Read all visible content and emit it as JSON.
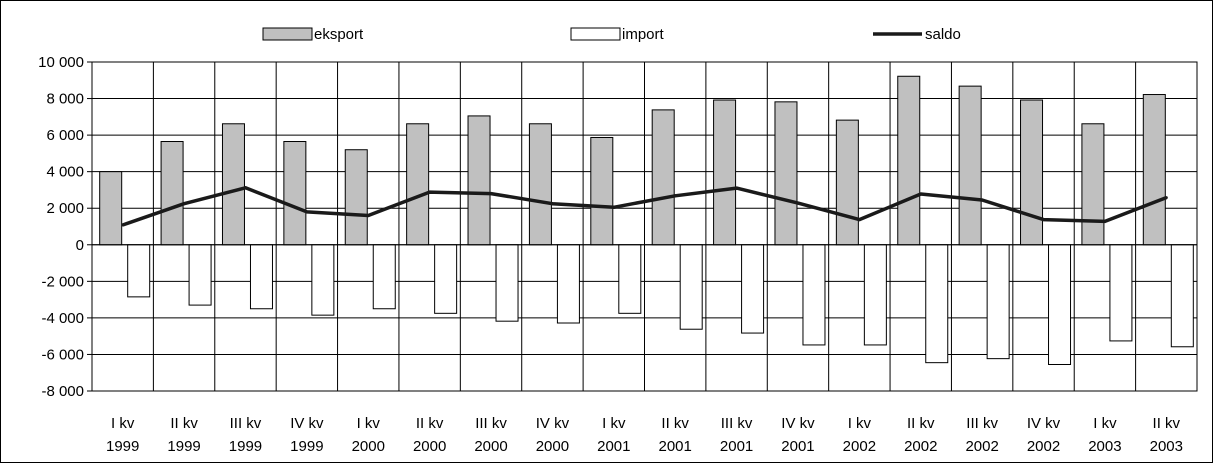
{
  "chart_data": {
    "type": "bar",
    "categories": [
      [
        "I kv",
        "1999"
      ],
      [
        "II kv",
        "1999"
      ],
      [
        "III kv",
        "1999"
      ],
      [
        "IV kv",
        "1999"
      ],
      [
        "I kv",
        "2000"
      ],
      [
        "II kv",
        "2000"
      ],
      [
        "III kv",
        "2000"
      ],
      [
        "IV kv",
        "2000"
      ],
      [
        "I kv",
        "2001"
      ],
      [
        "II kv",
        "2001"
      ],
      [
        "III kv",
        "2001"
      ],
      [
        "IV kv",
        "2001"
      ],
      [
        "I kv",
        "2002"
      ],
      [
        "II kv",
        "2002"
      ],
      [
        "III kv",
        "2002"
      ],
      [
        "IV kv",
        "2002"
      ],
      [
        "I kv",
        "2003"
      ],
      [
        "II kv",
        "2003"
      ]
    ],
    "series": [
      {
        "name": "eksport",
        "kind": "bar",
        "color": "#c0c0c0",
        "values": [
          4000,
          5650,
          6620,
          5650,
          5200,
          6620,
          7050,
          6620,
          5870,
          7380,
          7920,
          7820,
          6820,
          9220,
          8680,
          7920,
          6620,
          8220
        ]
      },
      {
        "name": "import",
        "kind": "bar",
        "color": "#ffffff",
        "values": [
          -2850,
          -3300,
          -3500,
          -3850,
          -3500,
          -3750,
          -4180,
          -4280,
          -3750,
          -4620,
          -4830,
          -5480,
          -5480,
          -6450,
          -6230,
          -6550,
          -5260,
          -5580
        ]
      },
      {
        "name": "saldo",
        "kind": "line",
        "color": "#1a1a1a",
        "values": [
          1080,
          2250,
          3120,
          1800,
          1600,
          2880,
          2800,
          2250,
          2050,
          2680,
          3100,
          2280,
          1380,
          2780,
          2450,
          1380,
          1280,
          2580
        ]
      }
    ],
    "ylim": [
      -8000,
      10000
    ],
    "ytick_step": 2000,
    "ytick_labels": [
      "10 000",
      "8 000",
      "6 000",
      "4 000",
      "2 000",
      "0",
      "-2 000",
      "-4 000",
      "-6 000",
      "-8 000"
    ],
    "grid": true,
    "legend_position": "top",
    "title": "",
    "xlabel": "",
    "ylabel": ""
  }
}
